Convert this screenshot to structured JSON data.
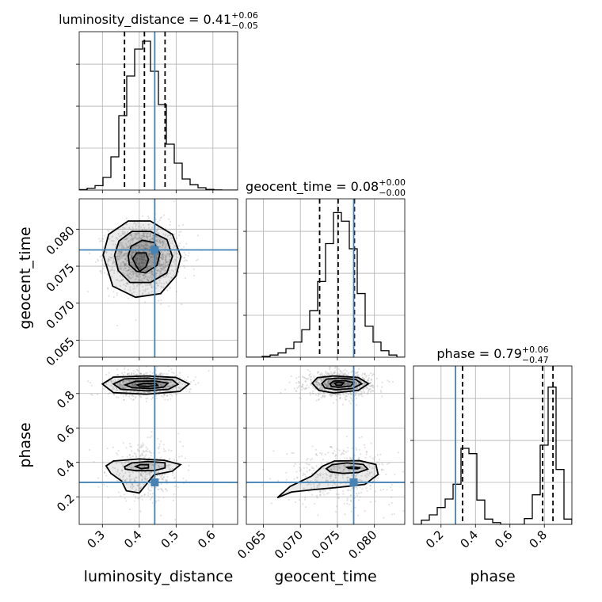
{
  "chart_data": {
    "type": "corner",
    "parameters": [
      "luminosity_distance",
      "geocent_time",
      "phase"
    ],
    "axis_labels": {
      "luminosity_distance": "luminosity_distance",
      "geocent_time": "geocent_time",
      "phase": "phase"
    },
    "titles": [
      {
        "param": "luminosity_distance",
        "prefix": "luminosity_distance = 0.41",
        "plus": "+0.06",
        "minus": "−0.05"
      },
      {
        "param": "geocent_time",
        "prefix": "geocent_time = 0.08",
        "plus": "+0.00",
        "minus": "−0.00"
      },
      {
        "param": "phase",
        "prefix": "phase = 0.79",
        "plus": "+0.06",
        "minus": "−0.47"
      }
    ],
    "ranges": {
      "luminosity_distance": [
        0.237,
        0.667
      ],
      "geocent_time": [
        0.0627,
        0.0841
      ],
      "phase": [
        0.04,
        0.96
      ]
    },
    "ticks": {
      "luminosity_distance": [
        0.3,
        0.4,
        0.5,
        0.6
      ],
      "geocent_time": [
        0.065,
        0.07,
        0.075,
        0.08
      ],
      "phase": [
        0.2,
        0.4,
        0.6,
        0.8
      ]
    },
    "tick_labels": {
      "luminosity_distance": [
        "0.3",
        "0.4",
        "0.5",
        "0.6"
      ],
      "geocent_time": [
        "0.065",
        "0.070",
        "0.075",
        "0.080"
      ],
      "phase": [
        "0.2",
        "0.4",
        "0.6",
        "0.8"
      ]
    },
    "truths": {
      "luminosity_distance": 0.442,
      "geocent_time": 0.0772,
      "phase": 0.284
    },
    "quantiles": {
      "luminosity_distance": [
        0.36,
        0.414,
        0.47
      ],
      "geocent_time": [
        0.0726,
        0.0751,
        0.0773
      ],
      "phase": [
        0.325,
        0.79,
        0.85
      ]
    },
    "histograms": {
      "luminosity_distance": {
        "edges": [
          0.237,
          0.2585,
          0.28,
          0.3015,
          0.323,
          0.3445,
          0.366,
          0.3875,
          0.409,
          0.4305,
          0.452,
          0.4735,
          0.495,
          0.5165,
          0.538,
          0.5595,
          0.581,
          0.6025,
          0.624,
          0.6455,
          0.667
        ],
        "counts": [
          0.3,
          1.2,
          2.8,
          8,
          21,
          47,
          72,
          89,
          94,
          75,
          54,
          29,
          17,
          7,
          3.4,
          1.5,
          0.4,
          0.1,
          0,
          0
        ],
        "ymax": 100
      },
      "geocent_time": {
        "edges": [
          0.0627,
          0.06377,
          0.06484,
          0.06591,
          0.06698,
          0.06805,
          0.06912,
          0.07019,
          0.07126,
          0.07233,
          0.0734,
          0.07447,
          0.07554,
          0.07661,
          0.07768,
          0.07875,
          0.07982,
          0.08089,
          0.08196,
          0.08303,
          0.0841
        ],
        "counts": [
          0,
          0,
          0.5,
          1.3,
          2.5,
          5,
          8.8,
          16,
          27,
          44,
          66,
          84,
          79,
          63,
          37,
          18,
          8.8,
          3.8,
          1.3,
          0
        ],
        "ymax": 92
      },
      "phase": {
        "edges": [
          0.04,
          0.086,
          0.132,
          0.178,
          0.224,
          0.27,
          0.316,
          0.362,
          0.408,
          0.454,
          0.5,
          0.546,
          0.592,
          0.638,
          0.684,
          0.73,
          0.776,
          0.822,
          0.868,
          0.914,
          0.96
        ],
        "counts": [
          0,
          4,
          9,
          16,
          24,
          38,
          72,
          67,
          23,
          5,
          1.7,
          0,
          0,
          0,
          5.5,
          28,
          75,
          130,
          52,
          5
        ],
        "ymax": 150
      }
    },
    "contours": [
      {
        "pair": [
          "luminosity_distance",
          "geocent_time"
        ],
        "levels": [
          [
            [
              0.302,
              0.0765
            ],
            [
              0.317,
              0.0793
            ],
            [
              0.37,
              0.0811
            ],
            [
              0.43,
              0.0811
            ],
            [
              0.49,
              0.0793
            ],
            [
              0.513,
              0.0763
            ],
            [
              0.5,
              0.0737
            ],
            [
              0.458,
              0.0713
            ],
            [
              0.39,
              0.0708
            ],
            [
              0.328,
              0.0723
            ]
          ],
          [
            [
              0.333,
              0.0765
            ],
            [
              0.345,
              0.0784
            ],
            [
              0.38,
              0.0797
            ],
            [
              0.43,
              0.0797
            ],
            [
              0.475,
              0.0786
            ],
            [
              0.49,
              0.0763
            ],
            [
              0.475,
              0.0741
            ],
            [
              0.43,
              0.0728
            ],
            [
              0.375,
              0.0728
            ],
            [
              0.343,
              0.0744
            ]
          ],
          [
            [
              0.37,
              0.0764
            ],
            [
              0.378,
              0.0777
            ],
            [
              0.408,
              0.0785
            ],
            [
              0.44,
              0.0782
            ],
            [
              0.456,
              0.0767
            ],
            [
              0.448,
              0.0751
            ],
            [
              0.417,
              0.0741
            ],
            [
              0.393,
              0.0743
            ],
            [
              0.373,
              0.0752
            ]
          ],
          [
            [
              0.382,
              0.076
            ],
            [
              0.393,
              0.0768
            ],
            [
              0.418,
              0.0768
            ],
            [
              0.425,
              0.0759
            ],
            [
              0.418,
              0.0749
            ],
            [
              0.401,
              0.0743
            ],
            [
              0.392,
              0.075
            ]
          ]
        ]
      },
      {
        "pair": [
          "luminosity_distance",
          "phase"
        ],
        "levels": [
          [
            [
              0.3,
              0.855
            ],
            [
              0.33,
              0.895
            ],
            [
              0.42,
              0.902
            ],
            [
              0.5,
              0.893
            ],
            [
              0.535,
              0.855
            ],
            [
              0.51,
              0.812
            ],
            [
              0.42,
              0.796
            ],
            [
              0.33,
              0.805
            ]
          ],
          [
            [
              0.33,
              0.855
            ],
            [
              0.36,
              0.885
            ],
            [
              0.42,
              0.889
            ],
            [
              0.49,
              0.879
            ],
            [
              0.505,
              0.853
            ],
            [
              0.48,
              0.825
            ],
            [
              0.42,
              0.815
            ],
            [
              0.35,
              0.825
            ]
          ],
          [
            [
              0.362,
              0.85
            ],
            [
              0.39,
              0.871
            ],
            [
              0.44,
              0.873
            ],
            [
              0.478,
              0.86
            ],
            [
              0.466,
              0.837
            ],
            [
              0.43,
              0.829
            ],
            [
              0.38,
              0.834
            ]
          ],
          [
            [
              0.395,
              0.85
            ],
            [
              0.412,
              0.858
            ],
            [
              0.445,
              0.858
            ],
            [
              0.45,
              0.847
            ],
            [
              0.425,
              0.841
            ],
            [
              0.4,
              0.843
            ]
          ],
          [
            [
              0.31,
              0.38
            ],
            [
              0.33,
              0.408
            ],
            [
              0.4,
              0.42
            ],
            [
              0.468,
              0.412
            ],
            [
              0.512,
              0.387
            ],
            [
              0.49,
              0.349
            ],
            [
              0.44,
              0.328
            ],
            [
              0.42,
              0.275
            ],
            [
              0.4,
              0.222
            ],
            [
              0.365,
              0.235
            ],
            [
              0.352,
              0.292
            ],
            [
              0.323,
              0.336
            ]
          ],
          [
            [
              0.36,
              0.375
            ],
            [
              0.38,
              0.397
            ],
            [
              0.425,
              0.405
            ],
            [
              0.47,
              0.398
            ],
            [
              0.47,
              0.368
            ],
            [
              0.44,
              0.352
            ],
            [
              0.39,
              0.352
            ],
            [
              0.362,
              0.361
            ]
          ],
          [
            [
              0.39,
              0.376
            ],
            [
              0.403,
              0.387
            ],
            [
              0.425,
              0.387
            ],
            [
              0.425,
              0.368
            ],
            [
              0.405,
              0.364
            ]
          ]
        ]
      },
      {
        "pair": [
          "geocent_time",
          "phase"
        ],
        "levels": [
          [
            [
              0.0716,
              0.86
            ],
            [
              0.0723,
              0.892
            ],
            [
              0.0745,
              0.902
            ],
            [
              0.0778,
              0.893
            ],
            [
              0.0792,
              0.857
            ],
            [
              0.0778,
              0.818
            ],
            [
              0.0745,
              0.803
            ],
            [
              0.0725,
              0.818
            ]
          ],
          [
            [
              0.0729,
              0.858
            ],
            [
              0.0735,
              0.883
            ],
            [
              0.0752,
              0.89
            ],
            [
              0.0775,
              0.881
            ],
            [
              0.0783,
              0.856
            ],
            [
              0.077,
              0.829
            ],
            [
              0.0748,
              0.822
            ],
            [
              0.0733,
              0.832
            ]
          ],
          [
            [
              0.074,
              0.856
            ],
            [
              0.0745,
              0.872
            ],
            [
              0.076,
              0.875
            ],
            [
              0.0772,
              0.863
            ],
            [
              0.0768,
              0.843
            ],
            [
              0.0752,
              0.836
            ],
            [
              0.0742,
              0.841
            ]
          ],
          [
            [
              0.07462,
              0.86
            ],
            [
              0.07518,
              0.866
            ],
            [
              0.07585,
              0.862
            ],
            [
              0.07555,
              0.848
            ],
            [
              0.07485,
              0.848
            ]
          ],
          [
            [
              0.0669,
              0.195
            ],
            [
              0.0686,
              0.26
            ],
            [
              0.0715,
              0.32
            ],
            [
              0.073,
              0.378
            ],
            [
              0.0746,
              0.408
            ],
            [
              0.078,
              0.41
            ],
            [
              0.0802,
              0.388
            ],
            [
              0.0805,
              0.33
            ],
            [
              0.0787,
              0.272
            ],
            [
              0.0752,
              0.255
            ],
            [
              0.0718,
              0.242
            ],
            [
              0.0688,
              0.228
            ]
          ],
          [
            [
              0.0735,
              0.364
            ],
            [
              0.0743,
              0.387
            ],
            [
              0.0763,
              0.397
            ],
            [
              0.0785,
              0.388
            ],
            [
              0.0791,
              0.361
            ],
            [
              0.0778,
              0.341
            ],
            [
              0.0757,
              0.336
            ],
            [
              0.074,
              0.345
            ]
          ],
          [
            [
              0.0763,
              0.371
            ],
            [
              0.0771,
              0.374
            ],
            [
              0.0781,
              0.369
            ],
            [
              0.0777,
              0.363
            ],
            [
              0.0765,
              0.365
            ]
          ]
        ]
      }
    ]
  }
}
